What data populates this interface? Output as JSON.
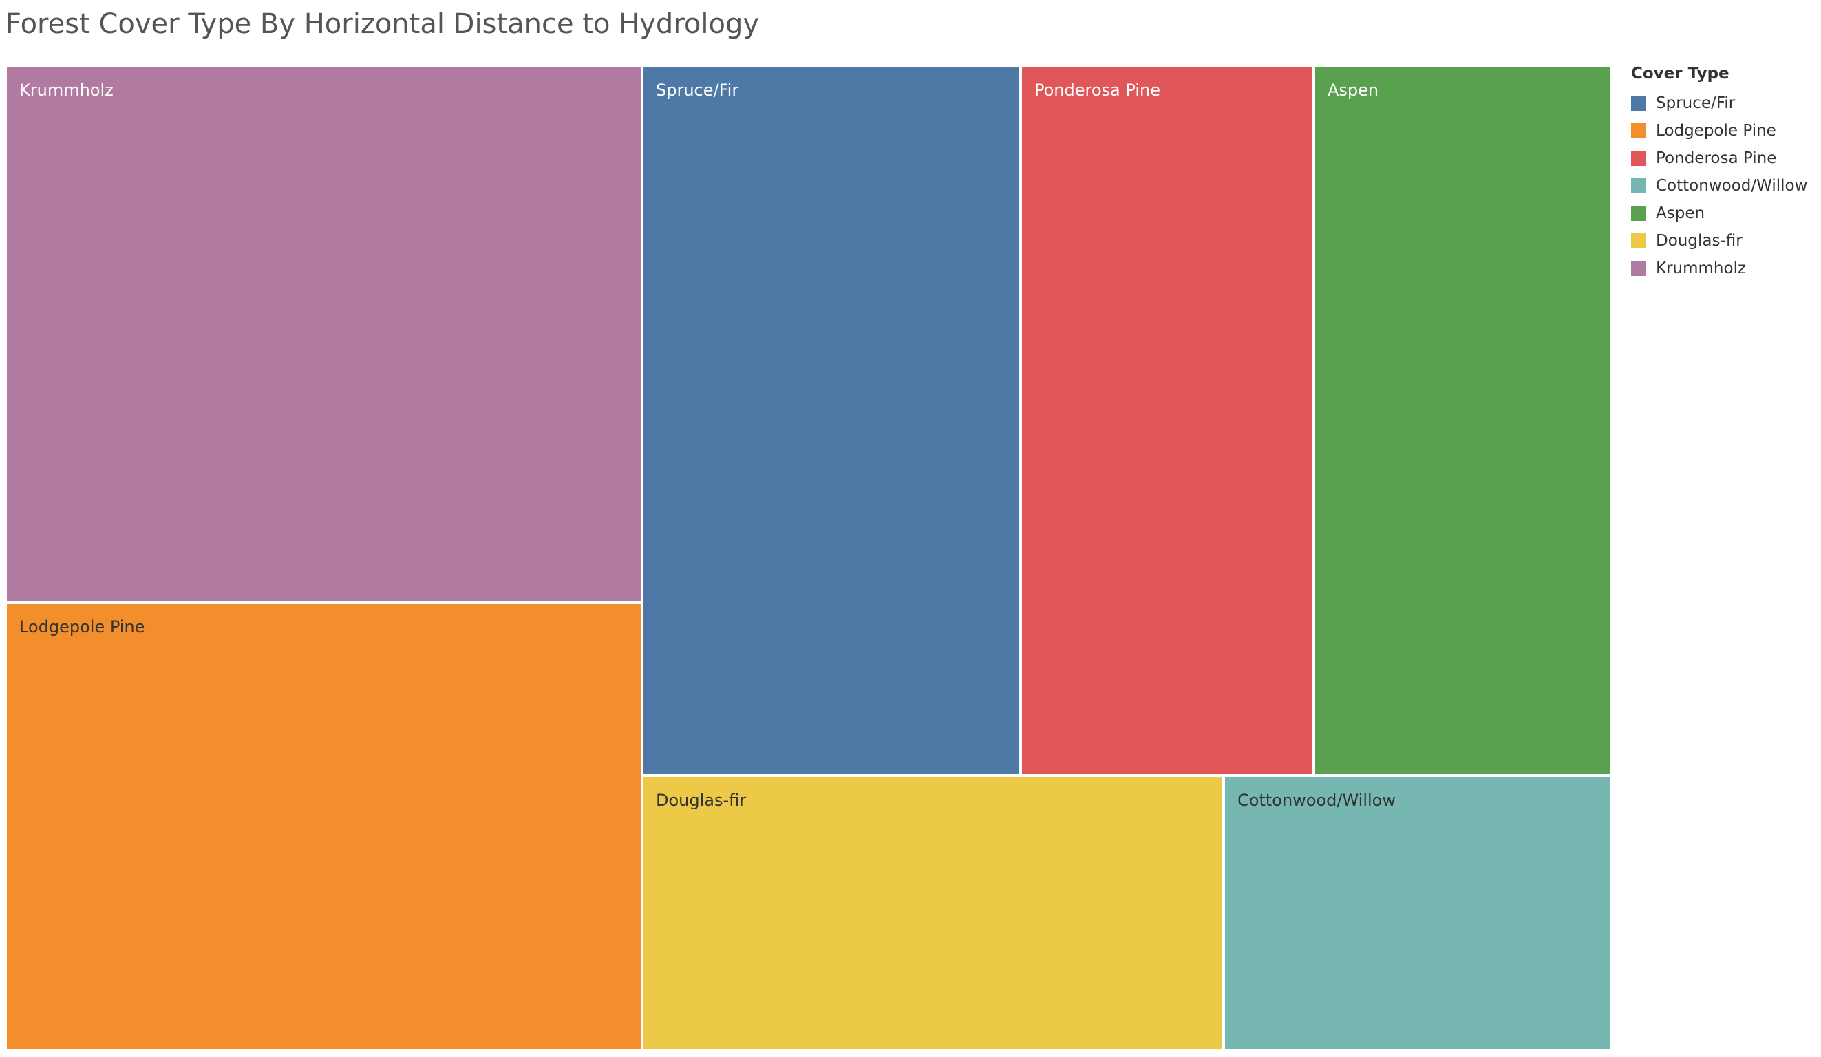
{
  "chart_data": {
    "type": "treemap",
    "title": "Forest Cover Type By Horizontal Distance to Hydrology",
    "legend_title": "Cover Type",
    "legend_position": "right",
    "tiles": [
      {
        "name": "Krummholz",
        "color": "#b07aa1",
        "text_color": "#ffffff"
      },
      {
        "name": "Lodgepole Pine",
        "color": "#f28e2b",
        "text_color": "#333333"
      },
      {
        "name": "Spruce/Fir",
        "color": "#4e79a7",
        "text_color": "#ffffff"
      },
      {
        "name": "Ponderosa Pine",
        "color": "#e15759",
        "text_color": "#ffffff"
      },
      {
        "name": "Aspen",
        "color": "#59a14f",
        "text_color": "#ffffff"
      },
      {
        "name": "Douglas-fir",
        "color": "#edc948",
        "text_color": "#333333"
      },
      {
        "name": "Cottonwood/Willow",
        "color": "#76b7b2",
        "text_color": "#333333"
      }
    ],
    "legend": [
      {
        "label": "Spruce/Fir",
        "color": "#4e79a7"
      },
      {
        "label": "Lodgepole Pine",
        "color": "#f28e2b"
      },
      {
        "label": "Ponderosa Pine",
        "color": "#e15759"
      },
      {
        "label": "Cottonwood/Willow",
        "color": "#76b7b2"
      },
      {
        "label": "Aspen",
        "color": "#59a14f"
      },
      {
        "label": "Douglas-fir",
        "color": "#edc948"
      },
      {
        "label": "Krummholz",
        "color": "#b07aa1"
      }
    ]
  }
}
